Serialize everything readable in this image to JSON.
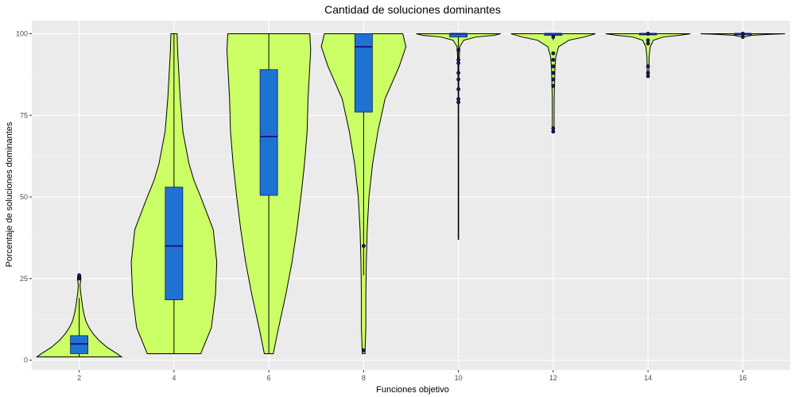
{
  "chart_data": {
    "type": "violin",
    "title": "Cantidad de soluciones dominantes",
    "xlabel": "Funciones objetivo",
    "ylabel": "Porcentaje de soluciones dominantes",
    "ylim": [
      -3,
      104
    ],
    "y_ticks": [
      0,
      25,
      50,
      75,
      100
    ],
    "grid": true,
    "colors": {
      "violin_fill": "#ccff66",
      "box_fill": "#1e73d2",
      "median": "#1a1a80",
      "outlier": "#1a1a8c",
      "panel": "#ebebeb"
    },
    "groups": [
      {
        "category": "2",
        "min": 1,
        "q1": 2,
        "median": 5,
        "q3": 7.5,
        "max": 19,
        "outliers": [
          25,
          26
        ],
        "violin_profile": [
          [
            1,
            0.95
          ],
          [
            2,
            0.85
          ],
          [
            4,
            0.62
          ],
          [
            6,
            0.45
          ],
          [
            8,
            0.32
          ],
          [
            10,
            0.22
          ],
          [
            12,
            0.15
          ],
          [
            14,
            0.11
          ],
          [
            16,
            0.08
          ],
          [
            18,
            0.06
          ],
          [
            19,
            0.05
          ],
          [
            21,
            0.03
          ],
          [
            23,
            0.02
          ],
          [
            24,
            0.03
          ],
          [
            25,
            0.04
          ],
          [
            26,
            0.03
          ],
          [
            26.5,
            0.0
          ]
        ]
      },
      {
        "category": "4",
        "min": 2,
        "q1": 18.5,
        "median": 35,
        "q3": 53,
        "max": 100,
        "outliers": [],
        "violin_profile": [
          [
            2,
            0.6
          ],
          [
            10,
            0.84
          ],
          [
            20,
            0.93
          ],
          [
            30,
            0.96
          ],
          [
            40,
            0.88
          ],
          [
            50,
            0.6
          ],
          [
            55,
            0.45
          ],
          [
            60,
            0.34
          ],
          [
            70,
            0.2
          ],
          [
            80,
            0.14
          ],
          [
            90,
            0.1
          ],
          [
            95,
            0.08
          ],
          [
            100,
            0.07
          ]
        ]
      },
      {
        "category": "6",
        "min": 2,
        "q1": 50.5,
        "median": 68.5,
        "q3": 89,
        "max": 100,
        "outliers": [],
        "violin_profile": [
          [
            2,
            0.1
          ],
          [
            10,
            0.22
          ],
          [
            20,
            0.38
          ],
          [
            30,
            0.52
          ],
          [
            40,
            0.63
          ],
          [
            50,
            0.72
          ],
          [
            60,
            0.8
          ],
          [
            70,
            0.86
          ],
          [
            80,
            0.88
          ],
          [
            90,
            0.92
          ],
          [
            95,
            0.94
          ],
          [
            100,
            0.92
          ]
        ]
      },
      {
        "category": "8",
        "min": 26,
        "q1": 76,
        "median": 96,
        "q3": 100,
        "max": 100,
        "outliers": [
          3,
          35
        ],
        "violin_profile": [
          [
            2,
            0.03
          ],
          [
            10,
            0.05
          ],
          [
            20,
            0.05
          ],
          [
            30,
            0.06
          ],
          [
            40,
            0.08
          ],
          [
            50,
            0.12
          ],
          [
            60,
            0.2
          ],
          [
            70,
            0.32
          ],
          [
            80,
            0.48
          ],
          [
            90,
            0.8
          ],
          [
            96,
            0.95
          ],
          [
            100,
            0.88
          ]
        ]
      },
      {
        "category": "10",
        "min": 37,
        "q1": 99,
        "median": 100,
        "q3": 100,
        "max": 100,
        "outliers": [
          79,
          80,
          83,
          86,
          88,
          91,
          92,
          95
        ],
        "violin_profile": [
          [
            37,
            0.005
          ],
          [
            60,
            0.005
          ],
          [
            80,
            0.006
          ],
          [
            90,
            0.01
          ],
          [
            96,
            0.03
          ],
          [
            98,
            0.12
          ],
          [
            99,
            0.4
          ],
          [
            99.5,
            0.8
          ],
          [
            100,
            0.95
          ]
        ]
      },
      {
        "category": "12",
        "min": 98,
        "q1": 99.5,
        "median": 100,
        "q3": 100,
        "max": 100,
        "outliers": [
          70,
          71,
          84,
          86,
          88,
          90,
          92,
          94,
          99
        ],
        "violin_profile": [
          [
            70,
            0.02
          ],
          [
            75,
            0.02
          ],
          [
            80,
            0.02
          ],
          [
            85,
            0.03
          ],
          [
            90,
            0.04
          ],
          [
            93,
            0.06
          ],
          [
            96,
            0.12
          ],
          [
            98,
            0.35
          ],
          [
            99,
            0.7
          ],
          [
            100,
            0.95
          ]
        ]
      },
      {
        "category": "14",
        "min": 99.5,
        "q1": 100,
        "median": 100,
        "q3": 100,
        "max": 100,
        "outliers": [
          87,
          88,
          90,
          97,
          98,
          100
        ],
        "violin_profile": [
          [
            87,
            0.02
          ],
          [
            90,
            0.02
          ],
          [
            93,
            0.025
          ],
          [
            96,
            0.05
          ],
          [
            98,
            0.12
          ],
          [
            99,
            0.35
          ],
          [
            99.5,
            0.7
          ],
          [
            100,
            0.95
          ]
        ]
      },
      {
        "category": "16",
        "min": 100,
        "q1": 100,
        "median": 100,
        "q3": 100,
        "max": 100,
        "outliers": [
          99,
          100
        ],
        "violin_profile": [
          [
            99,
            0.02
          ],
          [
            99.5,
            0.2
          ],
          [
            99.8,
            0.6
          ],
          [
            100,
            0.95
          ]
        ]
      }
    ]
  }
}
